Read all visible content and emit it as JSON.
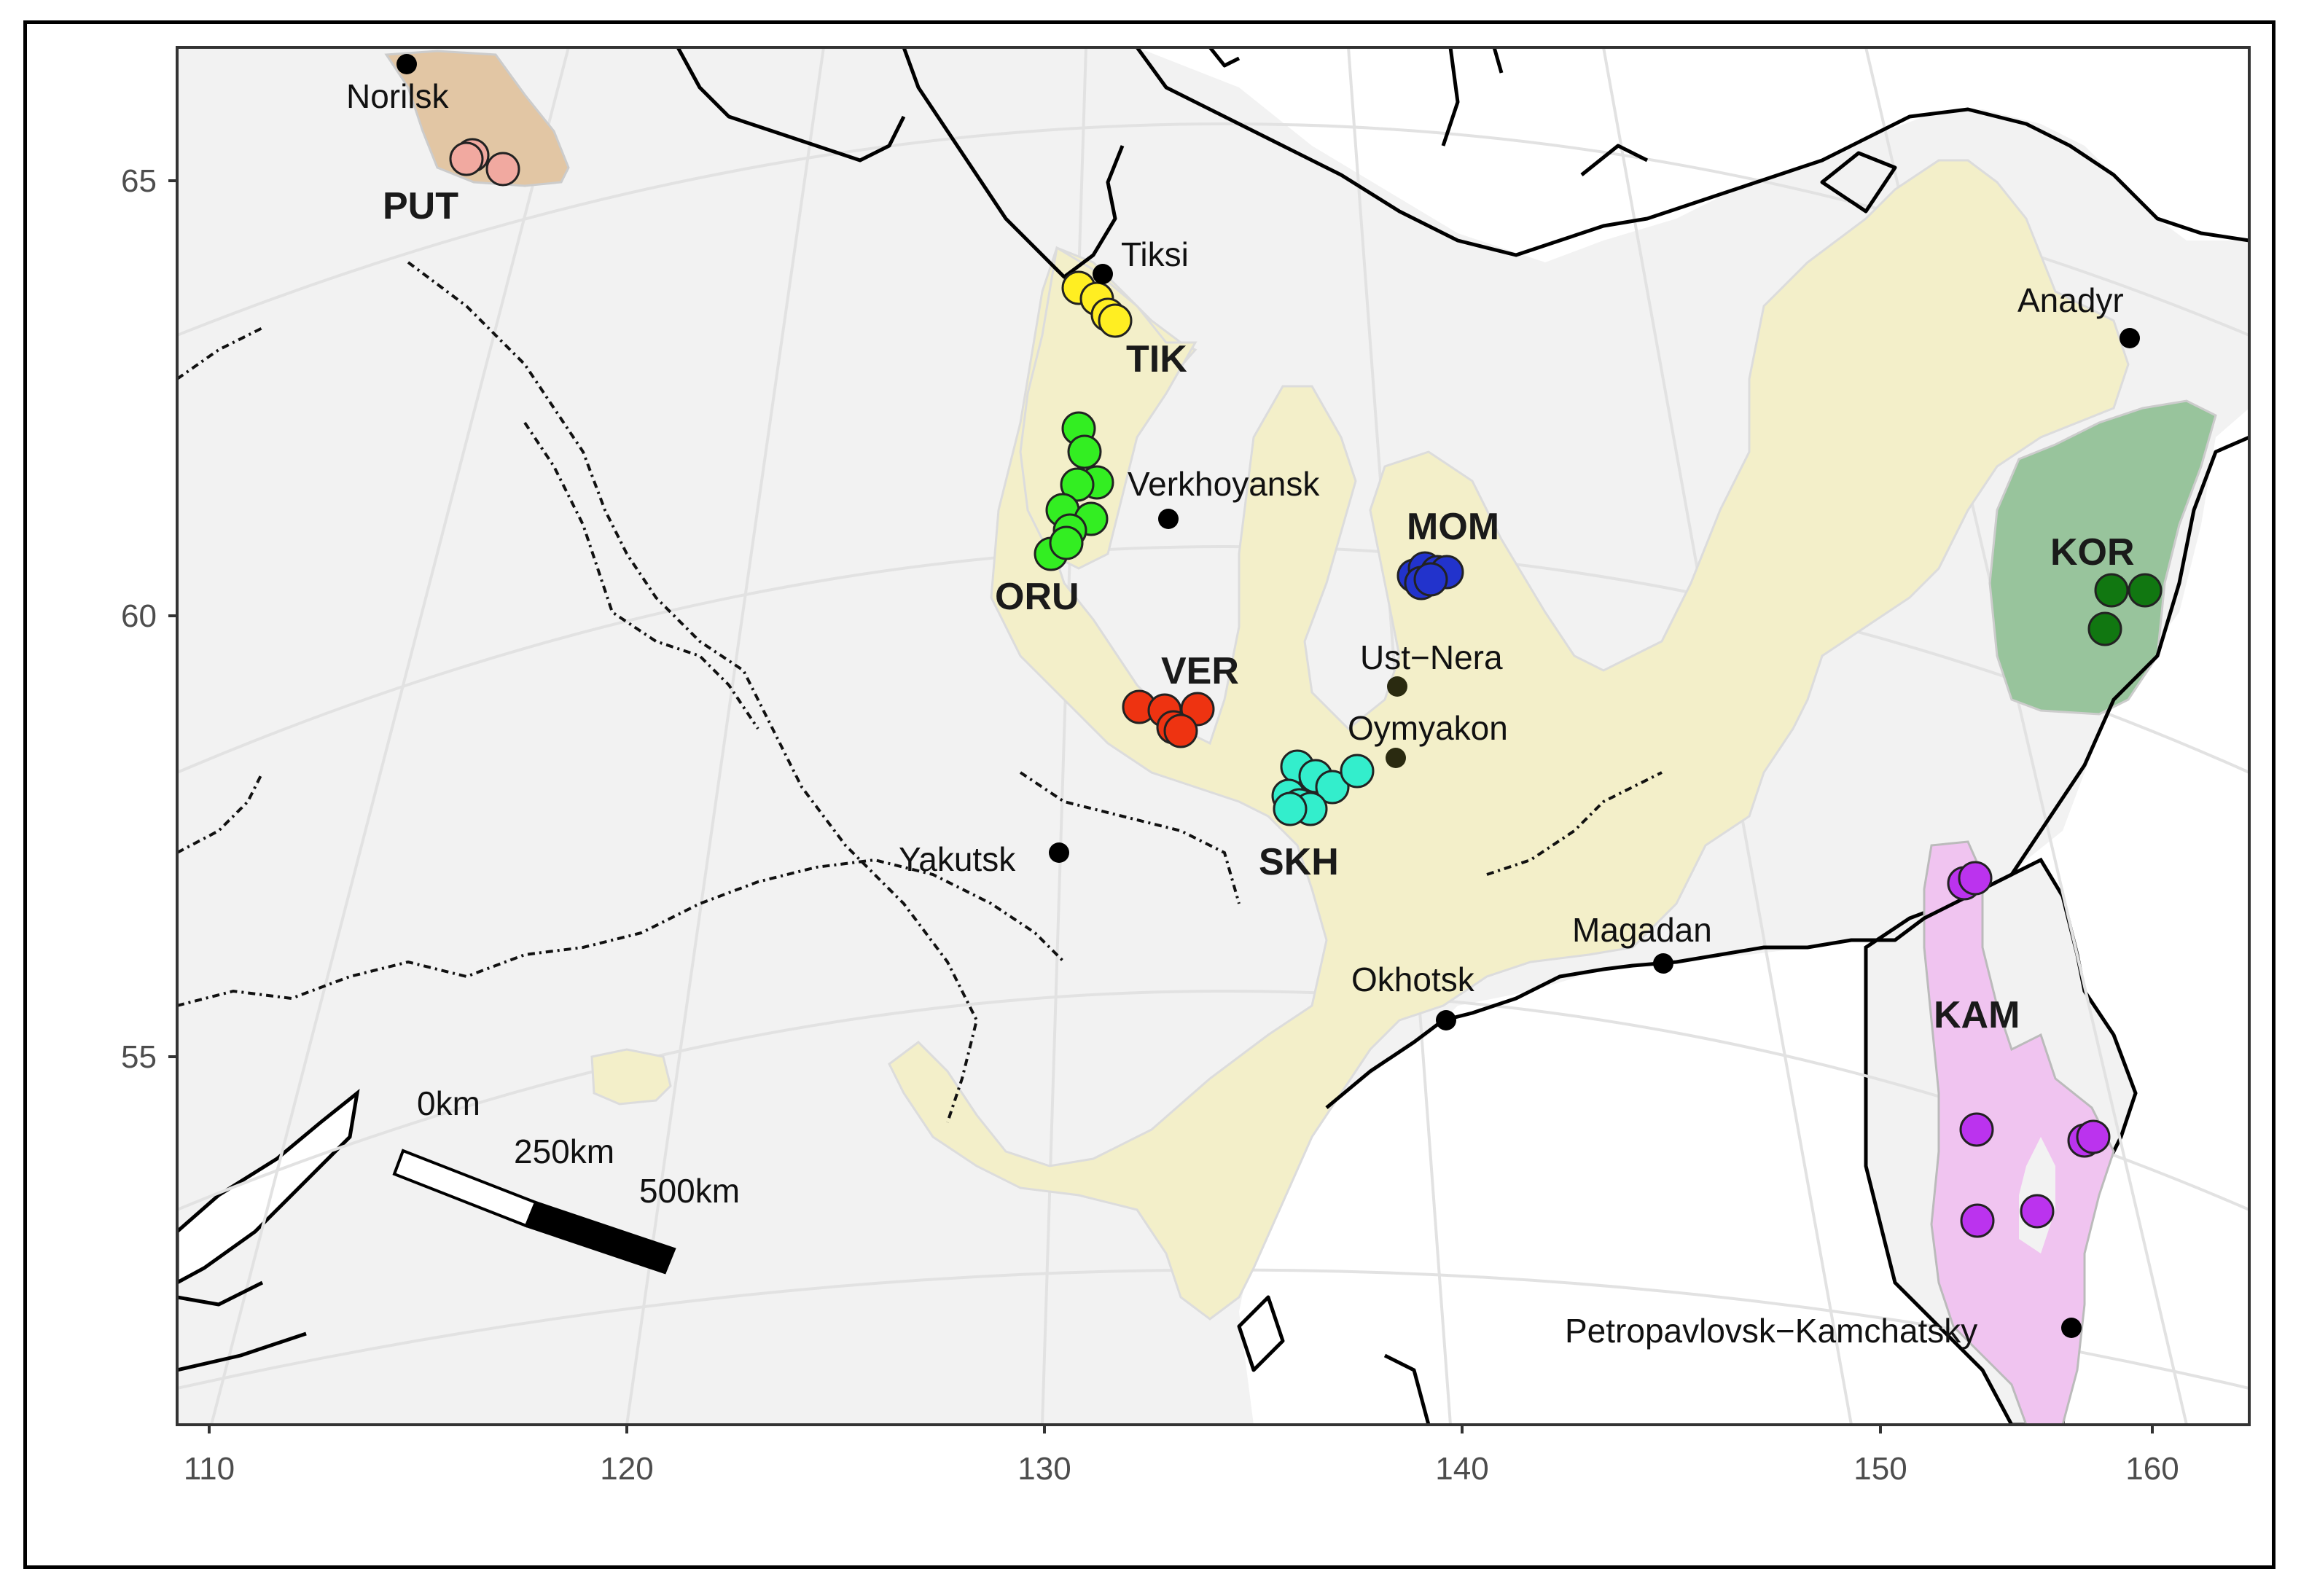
{
  "axes": {
    "x_ticks": [
      "110",
      "120",
      "130",
      "140",
      "150",
      "160"
    ],
    "y_ticks": [
      "65",
      "60",
      "55"
    ]
  },
  "colors": {
    "land": "#f2f2f2",
    "sea": "#ffffff",
    "range_main": "#f3efc9",
    "range_PUT": "#e2c6a4",
    "range_KOR": "#98c49c",
    "range_KAM": "#f0c4f0"
  },
  "cities": [
    {
      "id": "norilsk",
      "name": "Norilsk"
    },
    {
      "id": "tiksi",
      "name": "Tiksi"
    },
    {
      "id": "verkhoyansk",
      "name": "Verkhoyansk"
    },
    {
      "id": "ust-nera",
      "name": "Ust−Nera"
    },
    {
      "id": "oymyakon",
      "name": "Oymyakon"
    },
    {
      "id": "yakutsk",
      "name": "Yakutsk"
    },
    {
      "id": "magadan",
      "name": "Magadan"
    },
    {
      "id": "okhotsk",
      "name": "Okhotsk"
    },
    {
      "id": "anadyr",
      "name": "Anadyr"
    },
    {
      "id": "petropavlovsk",
      "name": "Petropavlovsk−Kamchatsky"
    }
  ],
  "populations": [
    {
      "id": "PUT",
      "label": "PUT",
      "color": "#f1a9a0"
    },
    {
      "id": "TIK",
      "label": "TIK",
      "color": "#ffee22"
    },
    {
      "id": "ORU",
      "label": "ORU",
      "color": "#33ee22"
    },
    {
      "id": "MOM",
      "label": "MOM",
      "color": "#2233cc"
    },
    {
      "id": "VER",
      "label": "VER",
      "color": "#ee3311"
    },
    {
      "id": "SKH",
      "label": "SKH",
      "color": "#33eecc"
    },
    {
      "id": "KOR",
      "label": "KOR",
      "color": "#117711"
    },
    {
      "id": "KAM",
      "label": "KAM",
      "color": "#bb33ee"
    }
  ],
  "scale_bar": {
    "labels": [
      "0km",
      "250km",
      "500km"
    ]
  }
}
